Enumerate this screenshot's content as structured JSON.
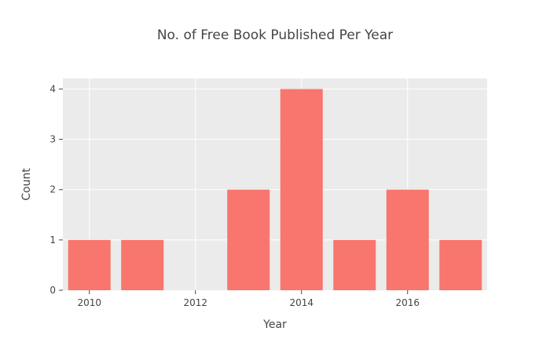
{
  "chart_data": {
    "type": "bar",
    "title": "No. of Free Book Published Per Year",
    "xlabel": "Year",
    "ylabel": "Count",
    "x": [
      2010,
      2011,
      2013,
      2014,
      2015,
      2016,
      2017
    ],
    "values": [
      1,
      1,
      2,
      4,
      1,
      2,
      1
    ],
    "x_ticks": [
      2010,
      2012,
      2014,
      2016
    ],
    "y_ticks": [
      0,
      1,
      2,
      3,
      4
    ],
    "xlim": [
      2009.5,
      2017.5
    ],
    "ylim": [
      0,
      4.21
    ],
    "grid": true,
    "legend": "none",
    "colors": {
      "bar": "#f8766d",
      "plot_background": "#ebebeb",
      "grid": "#ffffff",
      "text": "#444444"
    }
  }
}
